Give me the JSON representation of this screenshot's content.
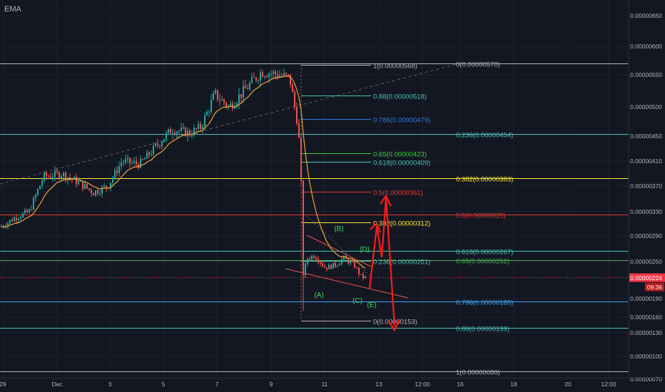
{
  "indicator_label": "EMA",
  "colors": {
    "background": "#131722",
    "up": "#26a69a",
    "down": "#ef5350",
    "ema": "#f0a33a",
    "axis_text": "#b2b5be",
    "price_tag": "#f23645",
    "arrows": "#ff1a1a",
    "wave_labels": "#3dda63",
    "fib_white": "#b2b5be",
    "fib_teal": "#4dc2b8",
    "fib_blue": "#2b7ae5",
    "fib_green": "#3bd63b",
    "fib_yellow": "#ffeb3b",
    "fib_red": "#e53935",
    "fib_lightblue": "#42a5f5",
    "fib_green2": "#4caf50"
  },
  "chart_data": {
    "type": "line",
    "title": "",
    "xlabel": "",
    "ylabel": "",
    "y_scale": "linear",
    "ylim": [
      6e-07,
      7e-06
    ],
    "x_ticks": [
      "29",
      "Dec",
      "3",
      "5",
      "7",
      "9",
      "11",
      "13",
      "12:00",
      "16",
      "18",
      "20",
      "12:00"
    ],
    "y_ticks": [
      "0.00000650",
      "0.00000600",
      "0.00000550",
      "0.00000500",
      "0.00000450",
      "0.00000410",
      "0.00000370",
      "0.00000330",
      "0.00000290",
      "0.00000250",
      "0.00000190",
      "0.00000160",
      "0.00000130",
      "0.00000100",
      "0.00000070"
    ],
    "current_price": {
      "value": "0.00000224",
      "time": "09:36"
    },
    "price_series": [
      {
        "date": "Nov 29",
        "close": 3e-06
      },
      {
        "date": "Nov 30",
        "close": 3.45e-06
      },
      {
        "date": "Dec 1",
        "close": 3.85e-06
      },
      {
        "date": "Dec 2",
        "close": 3.6e-06
      },
      {
        "date": "Dec 3",
        "close": 4.2e-06
      },
      {
        "date": "Dec 4",
        "close": 4.4e-06
      },
      {
        "date": "Dec 5",
        "close": 4.65e-06
      },
      {
        "date": "Dec 6",
        "close": 4.55e-06
      },
      {
        "date": "Dec 7",
        "close": 5.1e-06
      },
      {
        "date": "Dec 8",
        "close": 5.45e-06
      },
      {
        "date": "Dec 9",
        "close": 5.55e-06
      },
      {
        "date": "Dec 10",
        "close": 2.9e-06
      },
      {
        "date": "Dec 11",
        "close": 2.45e-06
      },
      {
        "date": "Dec 12",
        "close": 2.35e-06
      },
      {
        "date": "Dec 12 09:36",
        "close": 2.24e-06
      }
    ],
    "fib_retracement_large": [
      {
        "label": "0(0.00000570)",
        "value": 5.7e-06,
        "color": "fib_white"
      },
      {
        "label": "0.236(0.00000454)",
        "value": 4.54e-06,
        "color": "fib_teal"
      },
      {
        "label": "0.382(0.00000383)",
        "value": 3.83e-06,
        "color": "fib_yellow"
      },
      {
        "label": "0.5(0.00000325)",
        "value": 3.25e-06,
        "color": "fib_red"
      },
      {
        "label": "0.618(0.00000267)",
        "value": 2.67e-06,
        "color": "fib_teal"
      },
      {
        "label": "0.65(0.00000252)",
        "value": 2.52e-06,
        "color": "fib_green2"
      },
      {
        "label": "0.786(0.00000185)",
        "value": 1.85e-06,
        "color": "fib_lightblue"
      },
      {
        "label": "0.88(0.00000139)",
        "value": 1.39e-06,
        "color": "fib_teal"
      },
      {
        "label": "1(0.00000080)",
        "value": 8e-07,
        "color": "fib_white"
      }
    ],
    "fib_retracement_small": [
      {
        "label": "1(0.00000568)",
        "value": 5.68e-06,
        "color": "fib_white"
      },
      {
        "label": "0.88(0.00000518)",
        "value": 5.18e-06,
        "color": "fib_teal"
      },
      {
        "label": "0.786(0.00000479)",
        "value": 4.79e-06,
        "color": "fib_blue"
      },
      {
        "label": "0.65(0.00000423)",
        "value": 4.23e-06,
        "color": "fib_green"
      },
      {
        "label": "0.618(0.00000409)",
        "value": 4.09e-06,
        "color": "fib_teal"
      },
      {
        "label": "0.5(0.00000361)",
        "value": 3.61e-06,
        "color": "fib_red"
      },
      {
        "label": "0.382(0.00000312)",
        "value": 3.12e-06,
        "color": "fib_yellow"
      },
      {
        "label": "0.236(0.00000251)",
        "value": 2.51e-06,
        "color": "fib_teal"
      },
      {
        "label": "0(0.00000153)",
        "value": 1.53e-06,
        "color": "fib_white"
      }
    ],
    "wave_labels": [
      "(A)",
      "(B)",
      "(C)",
      "(D)",
      "(E)"
    ]
  }
}
